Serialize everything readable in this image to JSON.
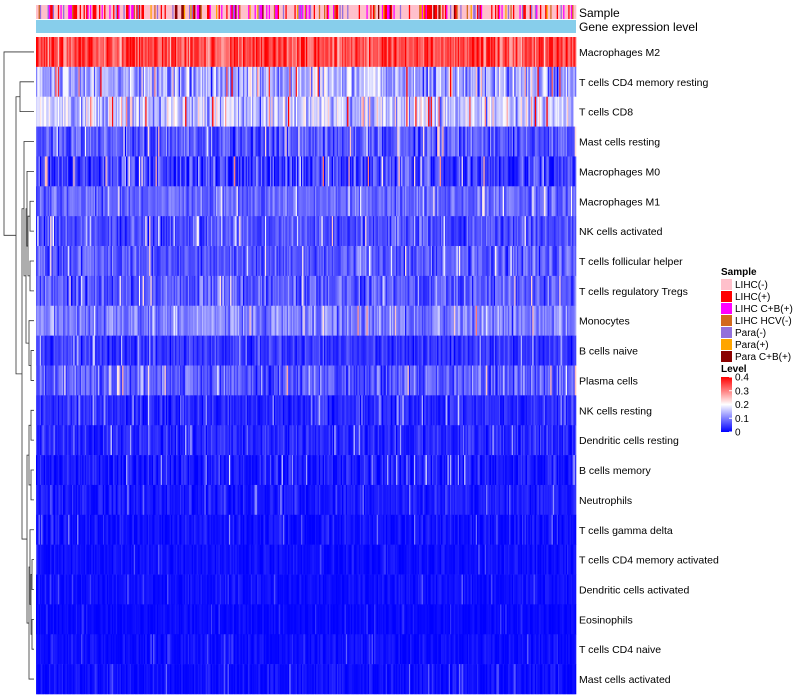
{
  "chart_data": {
    "type": "heatmap",
    "title": "",
    "annotation_rows": [
      {
        "label": "Sample",
        "kind": "categorical"
      },
      {
        "label": "Gene expression level",
        "kind": "gradient"
      }
    ],
    "rows": [
      {
        "label": "Macrophages M2",
        "mean": 0.34,
        "spread": 0.08
      },
      {
        "label": "T cells CD4 memory resting",
        "mean": 0.13,
        "spread": 0.09
      },
      {
        "label": "T cells CD8",
        "mean": 0.16,
        "spread": 0.1
      },
      {
        "label": "Mast cells resting",
        "mean": 0.07,
        "spread": 0.06
      },
      {
        "label": "Macrophages M0",
        "mean": 0.05,
        "spread": 0.08
      },
      {
        "label": "Macrophages M1",
        "mean": 0.08,
        "spread": 0.05
      },
      {
        "label": "NK cells activated",
        "mean": 0.06,
        "spread": 0.05
      },
      {
        "label": "T cells follicular helper",
        "mean": 0.07,
        "spread": 0.05
      },
      {
        "label": "T cells regulatory  Tregs",
        "mean": 0.07,
        "spread": 0.06
      },
      {
        "label": "Monocytes",
        "mean": 0.1,
        "spread": 0.06
      },
      {
        "label": "B cells naive",
        "mean": 0.04,
        "spread": 0.04
      },
      {
        "label": "Plasma cells",
        "mean": 0.07,
        "spread": 0.06
      },
      {
        "label": "NK cells resting",
        "mean": 0.03,
        "spread": 0.04
      },
      {
        "label": "Dendritic cells resting",
        "mean": 0.03,
        "spread": 0.04
      },
      {
        "label": "B cells memory",
        "mean": 0.02,
        "spread": 0.04
      },
      {
        "label": "Neutrophils",
        "mean": 0.02,
        "spread": 0.03
      },
      {
        "label": "T cells gamma delta",
        "mean": 0.01,
        "spread": 0.03
      },
      {
        "label": "T cells CD4 memory activated",
        "mean": 0.01,
        "spread": 0.02
      },
      {
        "label": "Dendritic cells activated",
        "mean": 0.01,
        "spread": 0.02
      },
      {
        "label": "Eosinophils",
        "mean": 0.005,
        "spread": 0.015
      },
      {
        "label": "T cells CD4 naive",
        "mean": 0.01,
        "spread": 0.02
      },
      {
        "label": "Mast cells activated",
        "mean": 0.01,
        "spread": 0.025
      }
    ],
    "n_columns": 420,
    "legends": {
      "sample": {
        "title": "Sample",
        "items": [
          {
            "label": "LIHC(-)",
            "color": "#ffc0cb"
          },
          {
            "label": "LIHC(+)",
            "color": "#ff0000"
          },
          {
            "label": "LIHC C+B(+)",
            "color": "#ff00ff"
          },
          {
            "label": "LIHC HCV(-)",
            "color": "#d2691e"
          },
          {
            "label": "Para(-)",
            "color": "#9370db"
          },
          {
            "label": "Para(+)",
            "color": "#ffa500"
          },
          {
            "label": "Para C+B(+)",
            "color": "#8b0000"
          }
        ]
      },
      "level": {
        "title": "Level",
        "min": 0,
        "max": 0.4,
        "ticks": [
          {
            "value": 0.4,
            "label": "0.4"
          },
          {
            "value": 0.3,
            "label": "0.3"
          },
          {
            "value": 0.2,
            "label": "0.2"
          },
          {
            "value": 0.1,
            "label": "0.1"
          },
          {
            "value": 0,
            "label": "0"
          }
        ],
        "colors": {
          "low": "#0000ff",
          "mid": "#ffffff",
          "high": "#ff0000"
        }
      }
    },
    "expression_bar_color": "#87ceeb"
  }
}
